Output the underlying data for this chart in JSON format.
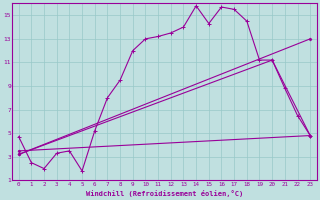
{
  "bg_color": "#c0e0e0",
  "grid_color": "#98c8c8",
  "line_color": "#990099",
  "xlabel": "Windchill (Refroidissement éolien,°C)",
  "xlim": [
    -0.5,
    23.5
  ],
  "ylim": [
    1,
    16
  ],
  "xticks": [
    0,
    1,
    2,
    3,
    4,
    5,
    6,
    7,
    8,
    9,
    10,
    11,
    12,
    13,
    14,
    15,
    16,
    17,
    18,
    19,
    20,
    21,
    22,
    23
  ],
  "yticks": [
    1,
    3,
    5,
    7,
    9,
    11,
    13,
    15
  ],
  "line1_x": [
    0,
    1,
    2,
    3,
    4,
    5,
    6,
    7,
    8,
    9,
    10,
    11,
    12,
    13,
    14,
    15,
    16,
    17,
    18,
    19,
    20,
    21,
    22,
    23
  ],
  "line1_y": [
    4.7,
    2.5,
    2.0,
    3.3,
    3.5,
    1.8,
    5.2,
    8.0,
    9.5,
    12.0,
    13.0,
    13.2,
    13.5,
    14.0,
    15.8,
    14.3,
    15.7,
    15.5,
    14.5,
    11.2,
    11.2,
    8.8,
    6.5,
    4.8
  ],
  "line2_x": [
    0,
    23
  ],
  "line2_y": [
    3.2,
    13.0
  ],
  "line3_x": [
    0,
    20,
    23
  ],
  "line3_y": [
    3.2,
    11.2,
    4.8
  ],
  "line4_x": [
    0,
    23
  ],
  "line4_y": [
    3.5,
    4.8
  ]
}
